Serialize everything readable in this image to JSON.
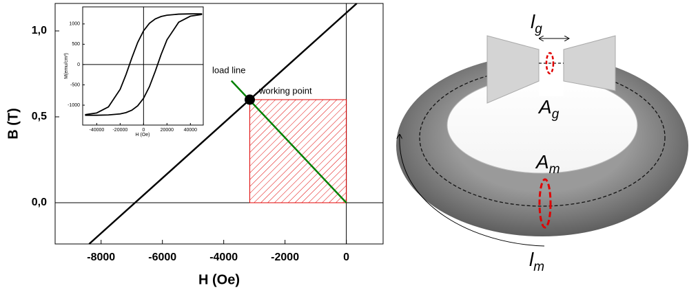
{
  "chart_data": [
    {
      "type": "line",
      "x_label": "H (Oe)",
      "y_label": "B (T)",
      "xlim": [
        -9500,
        1200
      ],
      "ylim": [
        -0.24,
        1.16
      ],
      "xticks": [
        -8000,
        -6000,
        -4000,
        -2000,
        0
      ],
      "yticks": [
        {
          "value": 0,
          "label": "0,0"
        },
        {
          "value": 0.5,
          "label": "0,5"
        },
        {
          "value": 1,
          "label": "1,0"
        }
      ],
      "zero_lines": true,
      "series": [
        {
          "color": "#000000",
          "x": [
            -8390,
            340
          ],
          "values": [
            -0.24,
            1.16
          ]
        },
        {
          "color": "#008000",
          "x": [
            -3750,
            0
          ],
          "values": [
            0.71,
            0
          ]
        }
      ],
      "working_point": {
        "x": -3150,
        "y": 0.6,
        "color": "#000000"
      },
      "region": {
        "x": [
          -3150,
          0
        ],
        "y": [
          0,
          0.6
        ],
        "color": "#e00000"
      },
      "annotations": [
        "load line",
        "working point"
      ]
    },
    {
      "type": "line",
      "x_label": "H (Oe)",
      "y_label": "M(emu/cm³)",
      "xlim": [
        -52000,
        51000
      ],
      "ylim": [
        -1490,
        1420
      ],
      "xticks": [
        -40000,
        -20000,
        0,
        20000,
        40000
      ],
      "yticks": [
        -1000,
        -500,
        0,
        500,
        1000
      ],
      "zero_lines": true,
      "series": [
        {
          "color": "#000000",
          "x": [
            -50000,
            -40000,
            -30000,
            -20000,
            -15000,
            -10000,
            -5000,
            0,
            5000,
            10000,
            15000,
            20000,
            30000,
            40000,
            50000
          ],
          "values": [
            -1234,
            -1191,
            -1042,
            -610,
            -247,
            165,
            545,
            830,
            1015,
            1124,
            1183,
            1215,
            1241,
            1248,
            1249
          ]
        },
        {
          "color": "#000000",
          "x": [
            -50000,
            -40000,
            -30000,
            -20000,
            -15000,
            -10000,
            -5000,
            0,
            5000,
            10000,
            15000,
            20000,
            30000,
            40000,
            50000
          ],
          "values": [
            -1249,
            -1248,
            -1241,
            -1215,
            -1183,
            -1124,
            -1015,
            -830,
            -545,
            -165,
            247,
            610,
            1042,
            1191,
            1234
          ]
        }
      ]
    }
  ],
  "diagram": {
    "labels": [
      {
        "main": "l",
        "sub": "g"
      },
      {
        "main": "A",
        "sub": "g"
      },
      {
        "main": "A",
        "sub": "m"
      },
      {
        "main": "l",
        "sub": "m"
      }
    ]
  }
}
